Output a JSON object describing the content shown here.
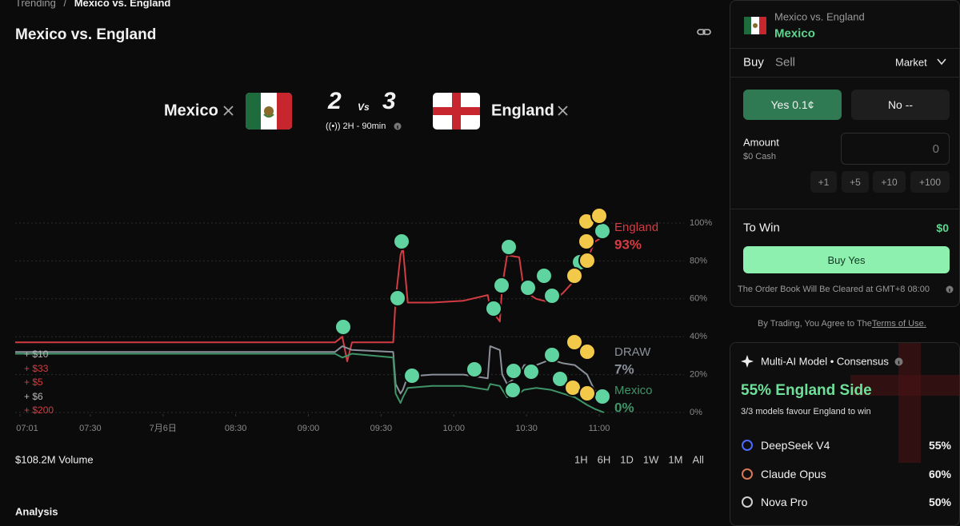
{
  "breadcrumb": {
    "parent": "Trending",
    "separator": "/",
    "current": "Mexico vs. England"
  },
  "header": {
    "title": "Mexico vs. England"
  },
  "match": {
    "home": "Mexico",
    "away": "England",
    "home_score": "2",
    "vs": "Vs",
    "away_score": "3",
    "status": "((•)) 2H - 90min"
  },
  "chart_data": {
    "type": "line",
    "x": [
      "06:59",
      "09:11",
      "09:14",
      "09:16",
      "09:18",
      "09:35",
      "09:36",
      "09:38",
      "09:39",
      "09:41",
      "09:51",
      "10:04",
      "10:14",
      "10:15",
      "10:19",
      "10:20",
      "10:22",
      "10:27",
      "10:29",
      "10:34",
      "10:40",
      "10:45",
      "10:50",
      "10:55",
      "10:58",
      "11:02"
    ],
    "xlim": [
      "06:59",
      "11:35"
    ],
    "xticks": [
      "07:01",
      "07:30",
      {
        "value": "08:00",
        "label": "7月6日"
      },
      "08:30",
      "09:00",
      "09:30",
      "10:00",
      "10:30",
      "11:00"
    ],
    "ylim": [
      0,
      100
    ],
    "yticks": [
      {
        "value": 0,
        "label": "0%"
      },
      {
        "value": 20,
        "label": "20%"
      },
      {
        "value": 40,
        "label": "40%"
      },
      {
        "value": 60,
        "label": "60%"
      },
      {
        "value": 80,
        "label": "80%"
      },
      {
        "value": 100,
        "label": "100%"
      }
    ],
    "grid": true,
    "series": [
      {
        "name": "England",
        "color": "#d23c42",
        "values": [
          37,
          37,
          40,
          27,
          37,
          37,
          60,
          83,
          87,
          58,
          58,
          59,
          62,
          55,
          48,
          67,
          83,
          82,
          64,
          60,
          58,
          63,
          70,
          80,
          90,
          93
        ],
        "value_labels": [
          null,
          null,
          null,
          null,
          null,
          null,
          null,
          null,
          null,
          null,
          null,
          null,
          null,
          null,
          null,
          null,
          null,
          null,
          null,
          null,
          null,
          null,
          null,
          null,
          null,
          "93%"
        ]
      },
      {
        "name": "DRAW",
        "color": "#8b9099",
        "values": [
          32,
          32,
          35,
          34,
          33,
          32,
          15,
          10,
          12,
          19,
          20,
          20,
          18,
          35,
          33,
          20,
          15,
          20,
          25,
          25,
          28,
          26,
          25,
          20,
          12,
          7
        ],
        "value_labels": [
          null,
          null,
          null,
          null,
          null,
          null,
          null,
          null,
          null,
          null,
          null,
          null,
          null,
          null,
          null,
          null,
          null,
          null,
          null,
          null,
          null,
          null,
          null,
          null,
          null,
          "7%"
        ]
      },
      {
        "name": "Mexico",
        "color": "#3f9468",
        "values": [
          31,
          31,
          29,
          30,
          31,
          29,
          10,
          5,
          8,
          13,
          14,
          14,
          12,
          15,
          14,
          12,
          8,
          10,
          12,
          13,
          12,
          10,
          8,
          4,
          2,
          0
        ],
        "value_labels": [
          null,
          null,
          null,
          null,
          null,
          null,
          null,
          null,
          null,
          null,
          null,
          null,
          null,
          null,
          null,
          null,
          null,
          null,
          null,
          null,
          null,
          null,
          null,
          null,
          null,
          "0%"
        ]
      }
    ]
  },
  "trades": [
    {
      "label": "+ $10",
      "color": "#b5b5b5"
    },
    {
      "label": "+ $33",
      "color": "#d23c42"
    },
    {
      "label": "+ $5",
      "color": "#d23c42"
    },
    {
      "label": "+ $6",
      "color": "#b5b5b5"
    },
    {
      "label": "+ $200",
      "color": "#d23c42"
    }
  ],
  "volume": "$108.2M Volume",
  "ranges": [
    "1H",
    "6H",
    "1D",
    "1W",
    "1M",
    "All"
  ],
  "analysis": "Analysis",
  "order": {
    "market": "Mexico vs. England",
    "outcome": "Mexico",
    "tabs": [
      "Buy",
      "Sell"
    ],
    "order_type": "Market",
    "yes": "Yes 0.1¢",
    "no": "No --",
    "amount_label": "Amount",
    "cash": "$0 Cash",
    "amount": "0",
    "quick": [
      "+1",
      "+5",
      "+10",
      "+100"
    ],
    "to_win_label": "To Win",
    "to_win": "$0",
    "submit": "Buy Yes",
    "note": "The Order Book Will Be Cleared at GMT+8 08:00"
  },
  "terms": {
    "text": "By Trading, You Agree to The",
    "link": "Terms of Use."
  },
  "consensus": {
    "title": "Multi-AI Model • Consensus",
    "headline": "55% England Side",
    "summary": "3/3 models favour England to win",
    "models": [
      {
        "name": "DeepSeek V4",
        "value": "55%"
      },
      {
        "name": "Claude Opus",
        "value": "60%"
      },
      {
        "name": "Nova Pro",
        "value": "50%"
      }
    ]
  }
}
